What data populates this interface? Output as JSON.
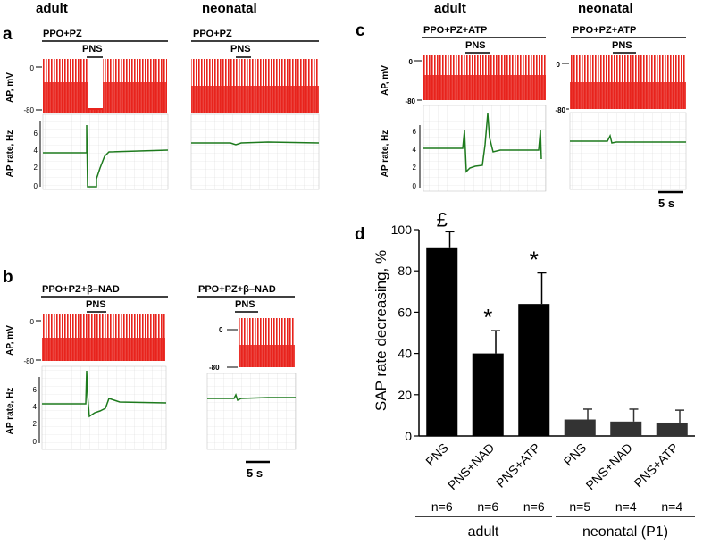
{
  "headers": {
    "adult_left": "adult",
    "neonatal_left": "neonatal",
    "adult_right": "adult",
    "neonatal_right": "neonatal"
  },
  "panel_letters": {
    "a": "a",
    "b": "b",
    "c": "c",
    "d": "d"
  },
  "panel_a": {
    "adult_condition": "PPO+PZ",
    "neonatal_condition": "PPO+PZ",
    "stim_label": "PNS",
    "ap_ylabel": "AP, mV",
    "rate_ylabel": "AP rate, Hz",
    "ap_ticks": [
      "0",
      "-80"
    ],
    "rate_ticks": [
      "6",
      "4",
      "2",
      "0"
    ]
  },
  "panel_b": {
    "adult_condition": "PPO+PZ+β–NAD",
    "neonatal_condition": "PPO+PZ+β–NAD",
    "stim_label": "PNS",
    "ap_ylabel": "AP, mV",
    "rate_ylabel": "AP rate, Hz",
    "ap_ticks": [
      "0",
      "-80"
    ],
    "rate_ticks": [
      "6",
      "4",
      "2",
      "0"
    ],
    "scale_bar": "5 s"
  },
  "panel_c": {
    "adult_condition": "PPO+PZ+ATP",
    "neonatal_condition": "PPO+PZ+ATP",
    "stim_label": "PNS",
    "ap_ylabel": "AP, mV",
    "rate_ylabel": "AP rate, Hz",
    "ap_ticks": [
      "0",
      "-80"
    ],
    "rate_ticks": [
      "6",
      "4",
      "2",
      "0"
    ],
    "scale_bar": "5 s"
  },
  "chart_data": {
    "type": "bar",
    "ylabel": "SAP rate decreasing, %",
    "ylim": [
      0,
      100
    ],
    "yticks": [
      "0",
      "20",
      "40",
      "60",
      "80",
      "100"
    ],
    "categories": [
      "PNS",
      "PNS+NAD",
      "PNS+ATP",
      "PNS",
      "PNS+NAD",
      "PNS+ATP"
    ],
    "values": [
      91,
      40,
      64,
      8,
      7,
      6.5
    ],
    "errors": [
      8,
      11,
      15,
      5,
      6,
      6
    ],
    "annotations": [
      "£",
      "*",
      "*",
      "",
      "",
      ""
    ],
    "n_labels": [
      "n=6",
      "n=6",
      "n=6",
      "n=5",
      "n=4",
      "n=4"
    ],
    "groups": [
      "adult",
      "neonatal (P1)"
    ],
    "colors": [
      "#000000",
      "#000000",
      "#000000",
      "#333333",
      "#333333",
      "#333333"
    ]
  },
  "colors": {
    "ap_trace": "#e8231c",
    "rate_trace": "#1d7a1d",
    "grid": "#d9d9d9"
  }
}
